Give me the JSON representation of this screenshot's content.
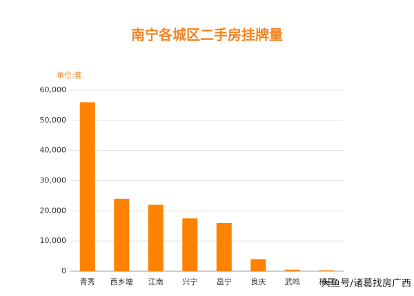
{
  "chart_data": {
    "type": "bar",
    "title": "南宁各城区二手房挂牌量",
    "unit_label": "单位:套",
    "categories": [
      "青秀",
      "西乡塘",
      "江南",
      "兴宁",
      "邕宁",
      "良庆",
      "武鸣",
      "横县"
    ],
    "values": [
      56000,
      24000,
      22000,
      17500,
      16000,
      4000,
      500,
      300
    ],
    "color": "#ff8200",
    "ylim": [
      0,
      60000
    ],
    "yticks": [
      0,
      {
        "value": 10000,
        "label": "10,000"
      },
      {
        "value": 20000,
        "label": "20,000"
      },
      {
        "value": 30000,
        "label": "30,000"
      },
      {
        "value": 40000,
        "label": "40,000"
      },
      {
        "value": 50000,
        "label": "50,000"
      },
      {
        "value": 60000,
        "label": "60,000"
      }
    ],
    "grid": true,
    "watermark": "大鱼号/诸葛找房广西"
  }
}
